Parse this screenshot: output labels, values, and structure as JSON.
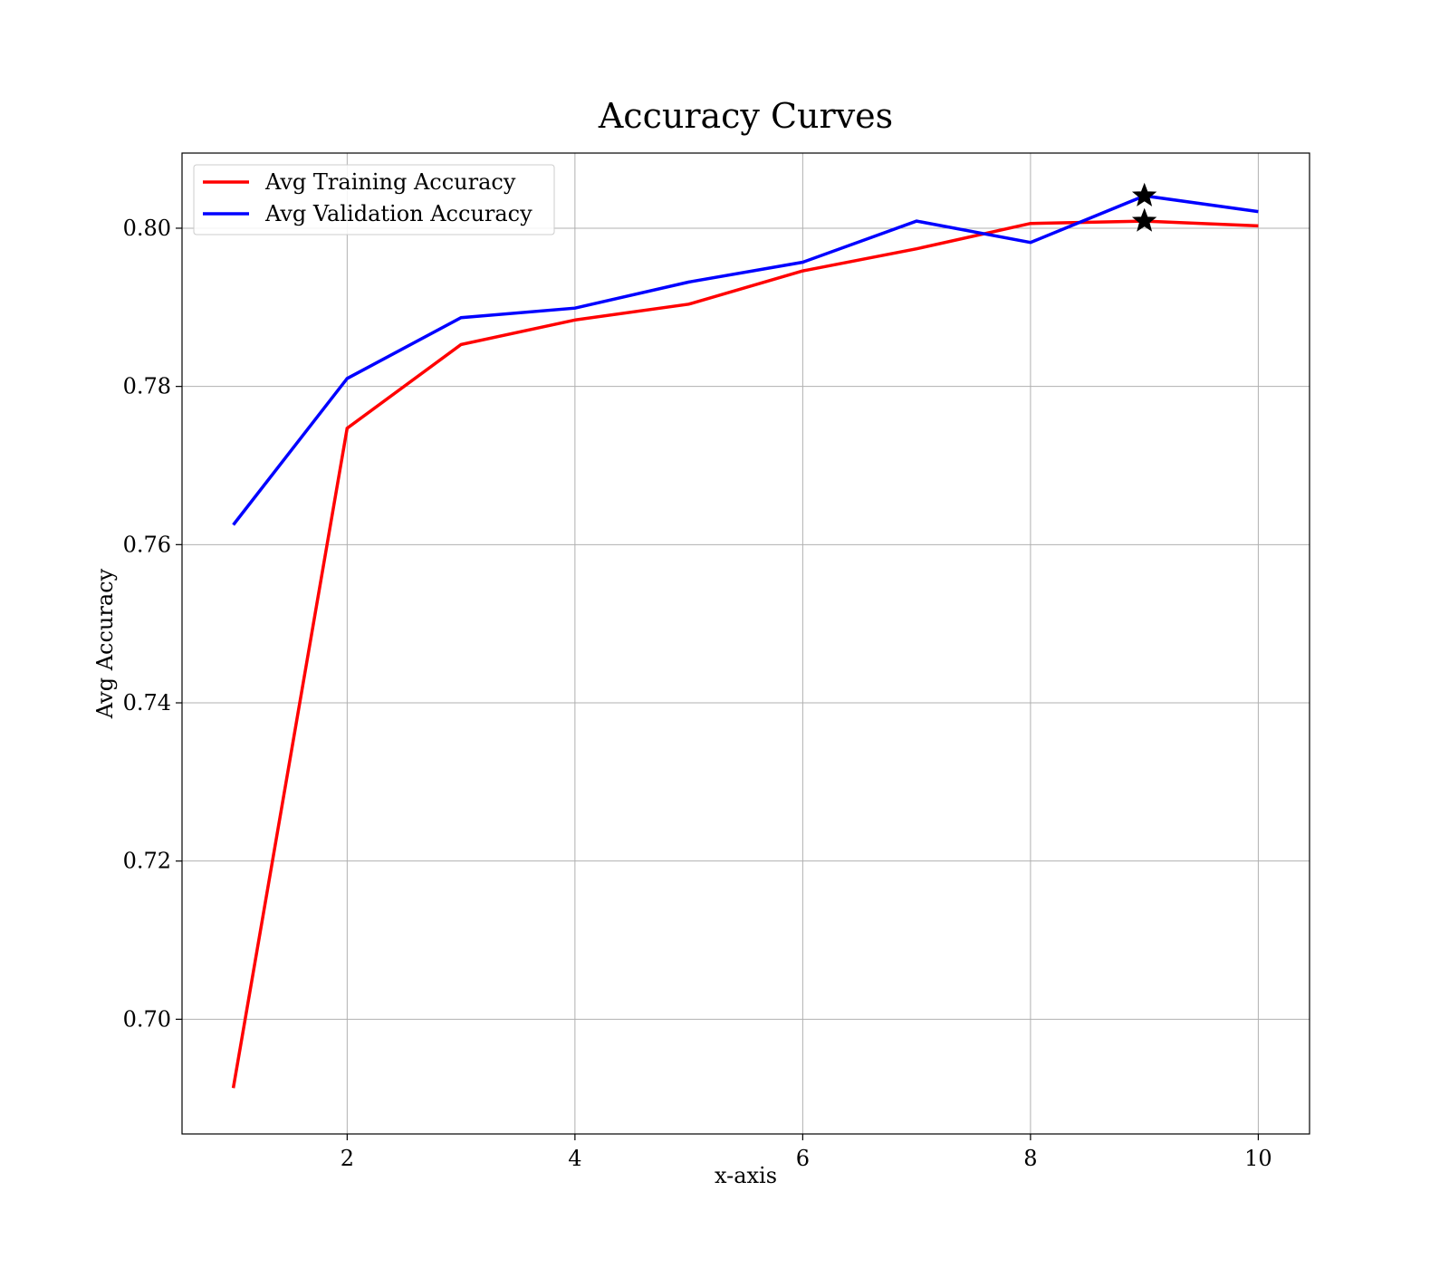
{
  "chart_data": {
    "type": "line",
    "title": "Accuracy Curves",
    "xlabel": "x-axis",
    "ylabel": "Avg Accuracy",
    "xlim": [
      0.55,
      10.45
    ],
    "ylim": [
      0.6855,
      0.8095
    ],
    "xticks": [
      2,
      4,
      6,
      8,
      10
    ],
    "xtick_labels": [
      "2",
      "4",
      "6",
      "8",
      "10"
    ],
    "yticks": [
      0.7,
      0.72,
      0.74,
      0.76,
      0.78,
      0.8
    ],
    "ytick_labels": [
      "0.70",
      "0.72",
      "0.74",
      "0.76",
      "0.78",
      "0.80"
    ],
    "grid": true,
    "legend_position": "upper-left",
    "x": [
      1,
      2,
      3,
      4,
      5,
      6,
      7,
      8,
      9,
      10
    ],
    "series": [
      {
        "name": "Avg Training Accuracy",
        "color": "#ff0000",
        "values": [
          0.6913,
          0.7747,
          0.7853,
          0.7884,
          0.7904,
          0.7946,
          0.7974,
          0.8006,
          0.8009,
          0.8003
        ],
        "best": {
          "x": 9,
          "y": 0.8009
        }
      },
      {
        "name": "Avg Validation Accuracy",
        "color": "#0000ff",
        "values": [
          0.7625,
          0.781,
          0.7887,
          0.7899,
          0.7932,
          0.7957,
          0.8009,
          0.7982,
          0.8041,
          0.8021
        ],
        "best": {
          "x": 9,
          "y": 0.8041
        }
      }
    ],
    "best_marker": "star",
    "marker_color": "#000000"
  }
}
